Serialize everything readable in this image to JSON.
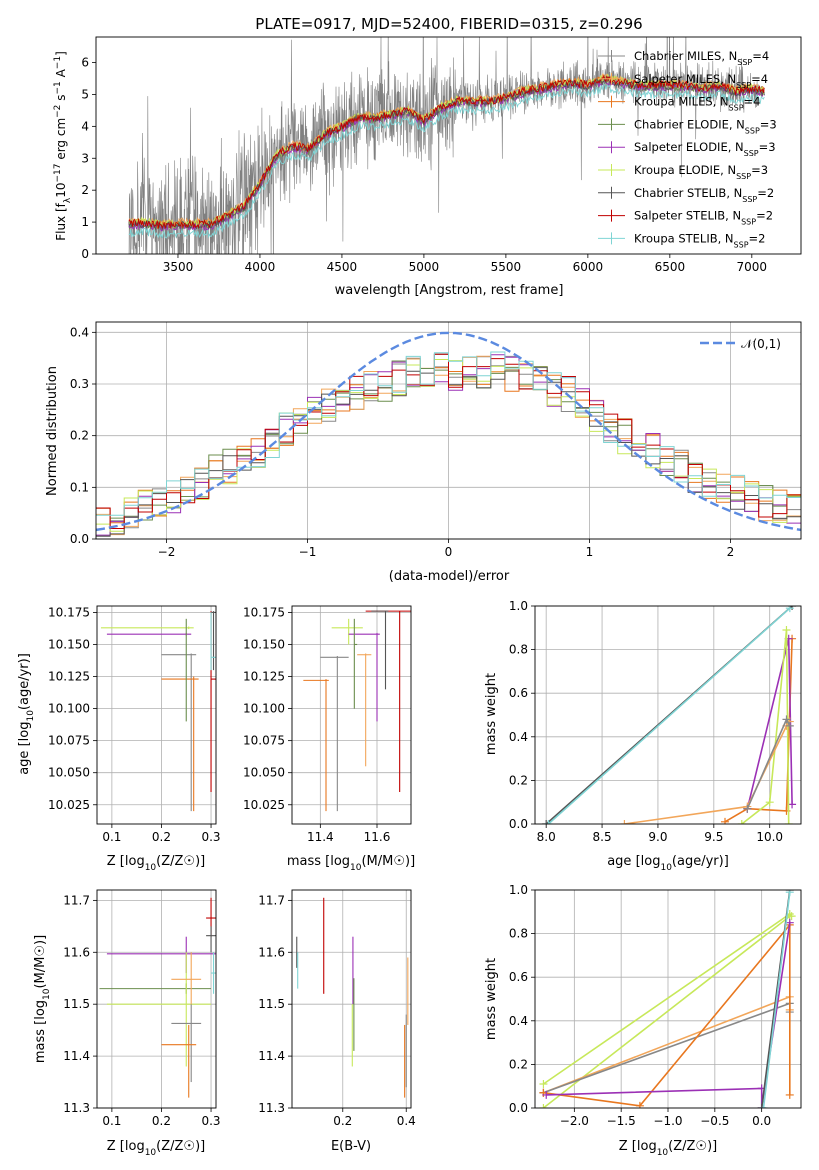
{
  "figure_title": "PLATE=0917, MJD=52400, FIBERID=0315, z=0.296",
  "colors": {
    "Chabrier MILES": "#888888",
    "Salpeter MILES": "#f2a65a",
    "Kroupa MILES": "#e8771f",
    "Chabrier ELODIE": "#6b8e4e",
    "Salpeter ELODIE": "#9b30b5",
    "Kroupa ELODIE": "#c7e85a",
    "Chabrier STELIB": "#555555",
    "Salpeter STELIB": "#c00000",
    "Kroupa STELIB": "#7fd4d4",
    "normal": "#5b8ae0",
    "grid": "#b0b0b0"
  },
  "chart_data": [
    {
      "id": "spectrum",
      "type": "line",
      "xlabel": "wavelength [Angstrom, rest frame]",
      "ylabel": "Flux [f_λ 10^-17 erg cm^-2 s^-1 A^-1]",
      "xlim": [
        3000,
        7300
      ],
      "ylim": [
        0,
        6.8
      ],
      "xticks": [
        3500,
        4000,
        4500,
        5000,
        5500,
        6000,
        6500,
        7000
      ],
      "yticks": [
        0,
        1,
        2,
        3,
        4,
        5,
        6
      ],
      "grid": false,
      "legend_position": "top-right",
      "legend": [
        {
          "name": "Chabrier MILES",
          "nssp": "4"
        },
        {
          "name": "Salpeter MILES",
          "nssp": "4"
        },
        {
          "name": "Kroupa MILES",
          "nssp": "4"
        },
        {
          "name": "Chabrier ELODIE",
          "nssp": "3"
        },
        {
          "name": "Salpeter ELODIE",
          "nssp": "3"
        },
        {
          "name": "Kroupa ELODIE",
          "nssp": "3"
        },
        {
          "name": "Chabrier STELIB",
          "nssp": "2"
        },
        {
          "name": "Salpeter STELIB",
          "nssp": "2"
        },
        {
          "name": "Kroupa STELIB",
          "nssp": "2"
        }
      ],
      "data_x_range": [
        3200,
        7050
      ],
      "model_curve": {
        "x": [
          3200,
          3300,
          3400,
          3500,
          3600,
          3700,
          3800,
          3900,
          4000,
          4100,
          4200,
          4300,
          4400,
          4500,
          4600,
          4700,
          4800,
          4900,
          5000,
          5100,
          5200,
          5300,
          5400,
          5500,
          5600,
          5700,
          5800,
          5900,
          6000,
          6100,
          6200,
          6300,
          6400,
          6500,
          6600,
          6700,
          6800,
          6900,
          7000,
          7080
        ],
        "y": [
          0.95,
          1.0,
          0.9,
          0.95,
          0.95,
          0.95,
          1.2,
          1.5,
          2.2,
          3.1,
          3.4,
          3.3,
          3.8,
          4.0,
          4.3,
          4.3,
          4.4,
          4.5,
          4.2,
          4.6,
          4.8,
          4.8,
          4.8,
          4.9,
          5.1,
          5.2,
          5.3,
          5.4,
          5.3,
          5.5,
          5.4,
          5.3,
          5.3,
          5.3,
          5.3,
          5.2,
          5.3,
          5.1,
          5.2,
          5.1
        ]
      },
      "model_offsets": [
        0.0,
        0.05,
        0.0,
        -0.05,
        -0.08,
        0.02,
        -0.04,
        0.0,
        -0.3
      ]
    },
    {
      "id": "residuals",
      "type": "line",
      "xlabel": "(data-model)/error",
      "ylabel": "Normed distribution",
      "xlim": [
        -2.5,
        2.5
      ],
      "ylim": [
        0,
        0.42
      ],
      "xticks": [
        -2,
        -1,
        0,
        1,
        2
      ],
      "yticks": [
        0.0,
        0.1,
        0.2,
        0.3,
        0.4
      ],
      "grid": true,
      "legend_position": "top-right",
      "legend_label": "𝒩(0,1)",
      "bin_width": 0.1,
      "base_histogram": {
        "x": [
          -2.5,
          -2.4,
          -2.3,
          -2.2,
          -2.1,
          -2.0,
          -1.9,
          -1.8,
          -1.7,
          -1.6,
          -1.5,
          -1.4,
          -1.3,
          -1.2,
          -1.1,
          -1.0,
          -0.9,
          -0.8,
          -0.7,
          -0.6,
          -0.5,
          -0.4,
          -0.3,
          -0.2,
          -0.1,
          0.0,
          0.1,
          0.2,
          0.3,
          0.4,
          0.5,
          0.6,
          0.7,
          0.8,
          0.9,
          1.0,
          1.1,
          1.2,
          1.3,
          1.4,
          1.5,
          1.6,
          1.7,
          1.8,
          1.9,
          2.0,
          2.1,
          2.2,
          2.3,
          2.4
        ],
        "y": [
          0.03,
          0.04,
          0.05,
          0.06,
          0.07,
          0.08,
          0.1,
          0.11,
          0.13,
          0.14,
          0.15,
          0.17,
          0.19,
          0.21,
          0.23,
          0.24,
          0.26,
          0.27,
          0.28,
          0.29,
          0.3,
          0.31,
          0.32,
          0.33,
          0.33,
          0.32,
          0.32,
          0.32,
          0.33,
          0.32,
          0.31,
          0.3,
          0.29,
          0.28,
          0.26,
          0.24,
          0.22,
          0.2,
          0.18,
          0.17,
          0.15,
          0.14,
          0.12,
          0.11,
          0.1,
          0.09,
          0.08,
          0.07,
          0.06,
          0.06
        ]
      },
      "normal_curve": {
        "mean": 0,
        "sigma": 1
      }
    },
    {
      "id": "age-vs-Z",
      "type": "scatter",
      "xlabel": "Z [log10(Z/Z☉)]",
      "ylabel": "age  [log10(age/yr)]",
      "xlim": [
        0.07,
        0.31
      ],
      "ylim": [
        10.01,
        10.18
      ],
      "xticks": [
        0.1,
        0.2,
        0.3
      ],
      "yticks": [
        10.025,
        10.05,
        10.075,
        10.1,
        10.125,
        10.15,
        10.175
      ],
      "grid": true,
      "points": [
        {
          "x": 0.255,
          "y": 10.163,
          "xl": 0.078,
          "xh": 0.265,
          "yl": 10.162,
          "yh": 10.164,
          "s": "Kroupa ELODIE"
        },
        {
          "x": 0.25,
          "y": 10.158,
          "xl": 0.09,
          "xh": 0.26,
          "yl": 10.157,
          "yh": 10.159,
          "s": "Salpeter ELODIE"
        },
        {
          "x": 0.26,
          "y": 10.142,
          "xl": 0.2,
          "xh": 0.27,
          "yl": 10.02,
          "yh": 10.143,
          "s": "Chabrier MILES"
        },
        {
          "x": 0.265,
          "y": 10.123,
          "xl": 0.2,
          "xh": 0.275,
          "yl": 10.02,
          "yh": 10.125,
          "s": "Kroupa MILES"
        },
        {
          "x": 0.3,
          "y": 10.123,
          "xl": 0.3,
          "xh": 0.31,
          "yl": 10.035,
          "yh": 10.176,
          "s": "Salpeter STELIB"
        },
        {
          "x": 0.305,
          "y": 10.175,
          "xl": 0.3,
          "xh": 0.31,
          "yl": 10.13,
          "yh": 10.176,
          "s": "Chabrier STELIB"
        },
        {
          "x": 0.25,
          "y": 10.13,
          "xl": 0.25,
          "xh": 0.25,
          "yl": 10.09,
          "yh": 10.17,
          "s": "Chabrier ELODIE"
        },
        {
          "x": 0.3,
          "y": 10.14,
          "xl": 0.3,
          "xh": 0.31,
          "yl": 10.13,
          "yh": 10.175,
          "s": "Kroupa STELIB"
        }
      ]
    },
    {
      "id": "age-vs-mass",
      "type": "scatter",
      "xlabel": "mass [log10(M/M☉)]",
      "ylabel": "",
      "xlim": [
        11.3,
        11.72
      ],
      "ylim": [
        10.01,
        10.18
      ],
      "xticks": [
        11.4,
        11.6
      ],
      "yticks": [
        10.025,
        10.05,
        10.075,
        10.1,
        10.125,
        10.15,
        10.175
      ],
      "grid": true,
      "points": [
        {
          "x": 11.5,
          "y": 10.163,
          "xl": 11.44,
          "xh": 11.55,
          "yl": 10.15,
          "yh": 10.17,
          "s": "Kroupa ELODIE"
        },
        {
          "x": 11.6,
          "y": 10.158,
          "xl": 11.5,
          "xh": 11.61,
          "yl": 10.09,
          "yh": 10.159,
          "s": "Salpeter ELODIE"
        },
        {
          "x": 11.46,
          "y": 10.14,
          "xl": 11.4,
          "xh": 11.5,
          "yl": 10.02,
          "yh": 10.141,
          "s": "Chabrier MILES"
        },
        {
          "x": 11.42,
          "y": 10.122,
          "xl": 11.34,
          "xh": 11.43,
          "yl": 10.02,
          "yh": 10.123,
          "s": "Kroupa MILES"
        },
        {
          "x": 11.56,
          "y": 10.142,
          "xl": 11.53,
          "xh": 11.58,
          "yl": 10.055,
          "yh": 10.143,
          "s": "Salpeter MILES"
        },
        {
          "x": 11.68,
          "y": 10.176,
          "xl": 11.56,
          "xh": 11.72,
          "yl": 10.035,
          "yh": 10.176,
          "s": "Salpeter STELIB"
        },
        {
          "x": 11.63,
          "y": 10.176,
          "xl": 11.58,
          "xh": 11.64,
          "yl": 10.115,
          "yh": 10.176,
          "s": "Chabrier STELIB"
        },
        {
          "x": 11.52,
          "y": 10.15,
          "xl": 11.52,
          "xh": 11.53,
          "yl": 10.1,
          "yh": 10.17,
          "s": "Chabrier ELODIE"
        }
      ]
    },
    {
      "id": "massweight-vs-age",
      "type": "line",
      "xlabel": "age  [log10(age/yr)]",
      "ylabel": "mass weight",
      "xlim": [
        7.9,
        10.28
      ],
      "ylim": [
        0,
        1.0
      ],
      "xticks": [
        8.0,
        8.5,
        9.0,
        9.5,
        10.0
      ],
      "yticks": [
        0.0,
        0.2,
        0.4,
        0.6,
        0.8,
        1.0
      ],
      "grid": true,
      "series": [
        {
          "s": "Chabrier STELIB",
          "x": [
            8.0,
            10.2
          ],
          "y": [
            0.0,
            1.0
          ]
        },
        {
          "s": "Kroupa STELIB",
          "x": [
            8.02,
            10.18
          ],
          "y": [
            0.0,
            0.99
          ]
        },
        {
          "s": "Kroupa MILES",
          "x": [
            9.6,
            9.8,
            10.15,
            10.2
          ],
          "y": [
            0.01,
            0.07,
            0.06,
            0.85
          ]
        },
        {
          "s": "Salpeter ELODIE",
          "x": [
            9.8,
            10.17,
            10.2
          ],
          "y": [
            0.07,
            0.85,
            0.09
          ]
        },
        {
          "s": "Kroupa ELODIE",
          "x": [
            9.75,
            10.0,
            10.15,
            10.17
          ],
          "y": [
            0.0,
            0.1,
            0.89,
            0.0
          ]
        },
        {
          "s": "Salpeter MILES",
          "x": [
            8.7,
            9.8,
            10.15,
            10.18
          ],
          "y": [
            0.0,
            0.08,
            0.45,
            0.47
          ]
        },
        {
          "s": "Chabrier MILES",
          "x": [
            9.8,
            10.15,
            10.18
          ],
          "y": [
            0.07,
            0.48,
            0.45
          ]
        }
      ]
    },
    {
      "id": "mass-vs-Z",
      "type": "scatter",
      "xlabel": "Z [log10(Z/Z☉)]",
      "ylabel": "mass [log10(M/M☉)]",
      "xlim": [
        0.07,
        0.31
      ],
      "ylim": [
        11.3,
        11.72
      ],
      "xticks": [
        0.1,
        0.2,
        0.3
      ],
      "yticks": [
        11.3,
        11.4,
        11.5,
        11.6,
        11.7
      ],
      "grid": true,
      "points": [
        {
          "x": 0.25,
          "y": 11.597,
          "xl": 0.09,
          "xh": 0.31,
          "yl": 11.56,
          "yh": 11.63,
          "s": "Salpeter ELODIE"
        },
        {
          "x": 0.25,
          "y": 11.53,
          "xl": 0.075,
          "xh": 0.3,
          "yl": 11.52,
          "yh": 11.54,
          "s": "Chabrier ELODIE"
        },
        {
          "x": 0.25,
          "y": 11.5,
          "xl": 0.09,
          "xh": 0.3,
          "yl": 11.38,
          "yh": 11.6,
          "s": "Kroupa ELODIE"
        },
        {
          "x": 0.26,
          "y": 11.463,
          "xl": 0.22,
          "xh": 0.28,
          "yl": 11.35,
          "yh": 11.5,
          "s": "Chabrier MILES"
        },
        {
          "x": 0.255,
          "y": 11.422,
          "xl": 0.2,
          "xh": 0.27,
          "yl": 11.32,
          "yh": 11.46,
          "s": "Kroupa MILES"
        },
        {
          "x": 0.26,
          "y": 11.548,
          "xl": 0.22,
          "xh": 0.28,
          "yl": 11.5,
          "yh": 11.6,
          "s": "Salpeter MILES"
        },
        {
          "x": 0.3,
          "y": 11.666,
          "xl": 0.29,
          "xh": 0.31,
          "yl": 11.63,
          "yh": 11.705,
          "s": "Salpeter STELIB"
        },
        {
          "x": 0.3,
          "y": 11.632,
          "xl": 0.29,
          "xh": 0.31,
          "yl": 11.6,
          "yh": 11.65,
          "s": "Chabrier STELIB"
        },
        {
          "x": 0.305,
          "y": 11.56,
          "xl": 0.3,
          "xh": 0.31,
          "yl": 11.52,
          "yh": 11.6,
          "s": "Kroupa STELIB"
        }
      ]
    },
    {
      "id": "mass-vs-ebv",
      "type": "scatter",
      "xlabel": "E(B-V)",
      "ylabel": "",
      "xlim": [
        0.04,
        0.415
      ],
      "ylim": [
        11.3,
        11.72
      ],
      "xticks": [
        0.2,
        0.4
      ],
      "yticks": [
        11.3,
        11.4,
        11.5,
        11.6,
        11.7
      ],
      "grid": true,
      "points": [
        {
          "x": 0.055,
          "y": 11.6,
          "xl": 0.055,
          "xh": 0.055,
          "yl": 11.57,
          "yh": 11.63,
          "s": "Chabrier STELIB"
        },
        {
          "x": 0.058,
          "y": 11.56,
          "xl": 0.058,
          "xh": 0.058,
          "yl": 11.53,
          "yh": 11.6,
          "s": "Kroupa STELIB"
        },
        {
          "x": 0.14,
          "y": 11.62,
          "xl": 0.14,
          "xh": 0.14,
          "yl": 11.52,
          "yh": 11.705,
          "s": "Salpeter STELIB"
        },
        {
          "x": 0.232,
          "y": 11.58,
          "xl": 0.232,
          "xh": 0.232,
          "yl": 11.5,
          "yh": 11.63,
          "s": "Salpeter ELODIE"
        },
        {
          "x": 0.235,
          "y": 11.47,
          "xl": 0.235,
          "xh": 0.235,
          "yl": 11.41,
          "yh": 11.55,
          "s": "Chabrier ELODIE"
        },
        {
          "x": 0.23,
          "y": 11.44,
          "xl": 0.23,
          "xh": 0.23,
          "yl": 11.38,
          "yh": 11.5,
          "s": "Kroupa ELODIE"
        },
        {
          "x": 0.395,
          "y": 11.4,
          "xl": 0.395,
          "xh": 0.395,
          "yl": 11.32,
          "yh": 11.46,
          "s": "Kroupa MILES"
        },
        {
          "x": 0.4,
          "y": 11.42,
          "xl": 0.4,
          "xh": 0.4,
          "yl": 11.34,
          "yh": 11.48,
          "s": "Chabrier MILES"
        },
        {
          "x": 0.405,
          "y": 11.53,
          "xl": 0.405,
          "xh": 0.405,
          "yl": 11.46,
          "yh": 11.59,
          "s": "Salpeter MILES"
        }
      ]
    },
    {
      "id": "massweight-vs-Z",
      "type": "line",
      "xlabel": "Z [log10(Z/Z☉)]",
      "ylabel": "mass weight",
      "xlim": [
        -2.42,
        0.42
      ],
      "ylim": [
        0,
        1.0
      ],
      "xticks": [
        -2.0,
        -1.5,
        -1.0,
        -0.5,
        0.0
      ],
      "yticks": [
        0.0,
        0.2,
        0.4,
        0.6,
        0.8,
        1.0
      ],
      "grid": true,
      "series": [
        {
          "s": "Kroupa ELODIE",
          "x": [
            -2.33,
            0.3,
            0.32
          ],
          "y": [
            0.11,
            0.89,
            0.88
          ]
        },
        {
          "s": "Kroupa ELODIE",
          "x": [
            -2.33,
            0.3
          ],
          "y": [
            0.0,
            0.88
          ]
        },
        {
          "s": "Salpeter MILES",
          "x": [
            -2.33,
            0.3,
            0.3
          ],
          "y": [
            0.07,
            0.51,
            0.45
          ]
        },
        {
          "s": "Chabrier MILES",
          "x": [
            -2.33,
            0.3,
            0.3
          ],
          "y": [
            0.07,
            0.48,
            0.44
          ]
        },
        {
          "s": "Kroupa MILES",
          "x": [
            -2.33,
            -1.3,
            0.3,
            0.3
          ],
          "y": [
            0.07,
            0.01,
            0.84,
            0.06
          ]
        },
        {
          "s": "Salpeter ELODIE",
          "x": [
            -2.3,
            0.0,
            0.0,
            0.3
          ],
          "y": [
            0.06,
            0.09,
            0.0,
            0.85
          ]
        },
        {
          "s": "Chabrier STELIB",
          "x": [
            0.0,
            0.3
          ],
          "y": [
            0.0,
            1.0
          ]
        },
        {
          "s": "Kroupa STELIB",
          "x": [
            0.02,
            0.3
          ],
          "y": [
            0.0,
            0.99
          ]
        }
      ]
    }
  ]
}
